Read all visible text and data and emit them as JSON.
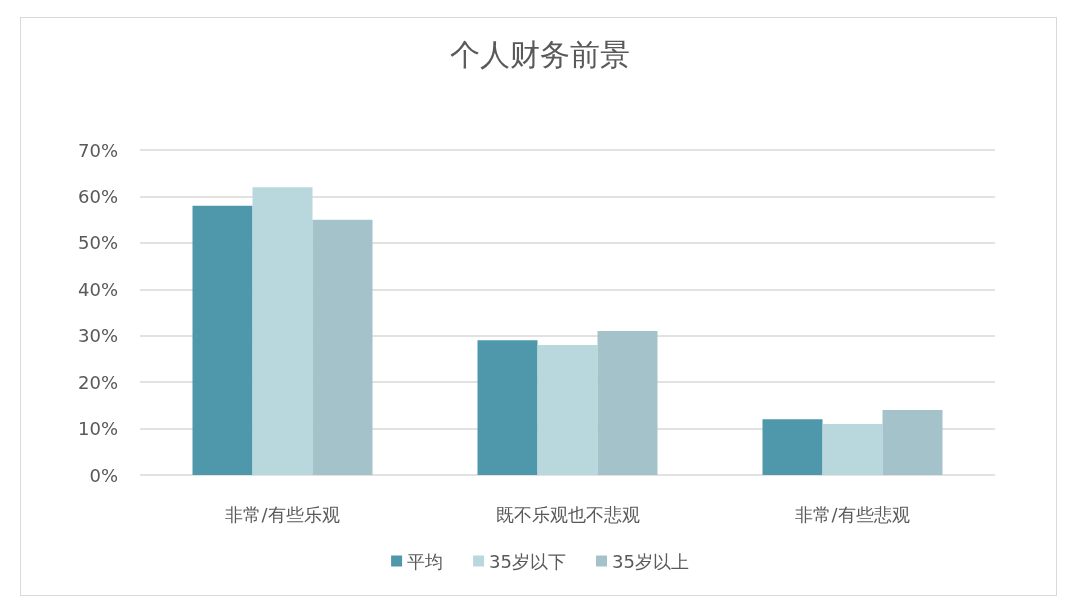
{
  "chart_data": {
    "type": "bar",
    "title": "个人财务前景",
    "categories": [
      "非常/有些乐观",
      "既不乐观也不悲观",
      "非常/有些悲观"
    ],
    "series": [
      {
        "name": "平均",
        "color": "#4f97aa",
        "values": [
          58,
          29,
          12
        ]
      },
      {
        "name": "35岁以下",
        "color": "#b9d8de",
        "values": [
          62,
          28,
          11
        ]
      },
      {
        "name": "35岁以上",
        "color": "#a3c2c9",
        "values": [
          55,
          31,
          14
        ]
      }
    ],
    "ylim": [
      0,
      70
    ],
    "yticks": [
      {
        "value": 0,
        "label": "0%"
      },
      {
        "value": 10,
        "label": "10%"
      },
      {
        "value": 20,
        "label": "20%"
      },
      {
        "value": 30,
        "label": "30%"
      },
      {
        "value": 40,
        "label": "40%"
      },
      {
        "value": 50,
        "label": "50%"
      },
      {
        "value": 60,
        "label": "60%"
      },
      {
        "value": 70,
        "label": "70%"
      }
    ],
    "grid": "y",
    "legend": "bottom"
  }
}
